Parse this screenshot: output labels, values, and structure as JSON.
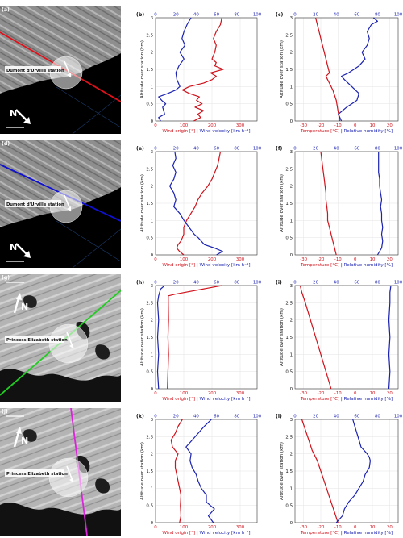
{
  "figure": {
    "ylabel": "Altitude over station (km)",
    "yticks": [
      "0",
      "0.5",
      "1",
      "1.5",
      "2",
      "2.5",
      "3"
    ],
    "wind_xlabel": {
      "red": "Wind origin [°]",
      "sep": " | ",
      "blue": "Wind velocity [km h⁻¹]"
    },
    "temp_xlabel": {
      "red": "Temperature [°C]",
      "sep": " | ",
      "blue": "Relative humidity [%]"
    },
    "wind_bottom_ticks": [
      "0",
      "100",
      "200",
      "300"
    ],
    "wind_top_ticks": [
      "0",
      "20",
      "40",
      "60",
      "80",
      "100"
    ],
    "temp_bottom_ticks": [
      "-30",
      "-20",
      "-10",
      "0",
      "10",
      "20"
    ],
    "temp_top_ticks": [
      "0",
      "20",
      "40",
      "60",
      "80",
      "100"
    ],
    "colors": {
      "red": "#d0121b",
      "blue": "#1b22b0",
      "green": "#22cc22",
      "magenta": "#dd22dd"
    }
  },
  "rows": [
    {
      "map": {
        "letter": "(a)",
        "station": "Dumont d'Urville station",
        "north": "N",
        "line_color": "#e0101a",
        "terrain": "dark"
      },
      "wind": {
        "letter": "(b)"
      },
      "temp": {
        "letter": "(c)"
      }
    },
    {
      "map": {
        "letter": "(d)",
        "station": "Dumont d'Urville station",
        "north": "N",
        "line_color": "#1010d0",
        "terrain": "dark"
      },
      "wind": {
        "letter": "(e)"
      },
      "temp": {
        "letter": "(f)"
      }
    },
    {
      "map": {
        "letter": "(g)",
        "station": "Princess Elizabeth station",
        "north": "N",
        "line_color": "#22cc22",
        "terrain": "light"
      },
      "wind": {
        "letter": "(h)"
      },
      "temp": {
        "letter": "(i)"
      }
    },
    {
      "map": {
        "letter": "(j)",
        "station": "Princess Elizabeth station",
        "north": "N",
        "line_color": "#dd22dd",
        "terrain": "light"
      },
      "wind": {
        "letter": "(k)"
      },
      "temp": {
        "letter": "(l)"
      }
    }
  ],
  "chart_data": [
    {
      "type": "line",
      "panel": "(b)",
      "xlim_bottom": [
        0,
        360
      ],
      "xlim_top": [
        0,
        100
      ],
      "ylim": [
        0,
        3
      ],
      "series": [
        {
          "color": "red",
          "axis": "bottom",
          "y": [
            0,
            0.1,
            0.2,
            0.3,
            0.4,
            0.5,
            0.6,
            0.7,
            0.8,
            0.9,
            1.0,
            1.1,
            1.2,
            1.3,
            1.4,
            1.5,
            1.6,
            1.7,
            1.8,
            1.9,
            2.0,
            2.2,
            2.4,
            2.6,
            2.8,
            3.0
          ],
          "x": [
            135,
            160,
            150,
            170,
            140,
            165,
            145,
            155,
            120,
            95,
            120,
            170,
            200,
            215,
            195,
            240,
            210,
            215,
            200,
            205,
            210,
            215,
            205,
            215,
            230,
            235
          ]
        },
        {
          "color": "blue",
          "axis": "top",
          "y": [
            0,
            0.1,
            0.2,
            0.3,
            0.4,
            0.5,
            0.6,
            0.7,
            0.8,
            0.9,
            1.0,
            1.2,
            1.4,
            1.6,
            1.8,
            2.0,
            2.2,
            2.4,
            2.6,
            2.8,
            3.0
          ],
          "x": [
            5,
            3,
            9,
            8,
            7,
            10,
            6,
            3,
            12,
            20,
            24,
            21,
            20,
            23,
            28,
            24,
            29,
            26,
            28,
            31,
            35
          ]
        }
      ]
    },
    {
      "type": "line",
      "panel": "(c)",
      "xlim_bottom": [
        -35,
        25
      ],
      "xlim_top": [
        0,
        100
      ],
      "ylim": [
        0,
        3
      ],
      "series": [
        {
          "color": "red",
          "axis": "bottom",
          "y": [
            0,
            0.3,
            0.6,
            0.9,
            1.1,
            1.2,
            1.3,
            1.4,
            1.6,
            1.8,
            2.0,
            2.2,
            2.4,
            2.6,
            2.8,
            3.0
          ],
          "x": [
            -9,
            -10,
            -11,
            -13,
            -15,
            -16,
            -17,
            -15,
            -16,
            -17,
            -18,
            -19,
            -20,
            -21,
            -22,
            -23
          ]
        },
        {
          "color": "blue",
          "axis": "top",
          "y": [
            0,
            0.2,
            0.4,
            0.5,
            0.6,
            0.8,
            1.0,
            1.2,
            1.3,
            1.4,
            1.6,
            1.8,
            2.0,
            2.2,
            2.4,
            2.6,
            2.8,
            2.9,
            3.0
          ],
          "x": [
            45,
            42,
            50,
            55,
            60,
            62,
            55,
            48,
            45,
            52,
            62,
            68,
            65,
            70,
            72,
            70,
            74,
            80,
            76
          ]
        }
      ]
    },
    {
      "type": "line",
      "panel": "(e)",
      "xlim_bottom": [
        0,
        360
      ],
      "xlim_top": [
        0,
        100
      ],
      "ylim": [
        0,
        3
      ],
      "series": [
        {
          "color": "red",
          "axis": "bottom",
          "y": [
            0,
            0.1,
            0.2,
            0.3,
            0.4,
            0.5,
            0.6,
            0.8,
            1.0,
            1.2,
            1.4,
            1.6,
            1.8,
            2.0,
            2.2,
            2.4,
            2.6,
            2.8,
            3.0
          ],
          "x": [
            100,
            85,
            75,
            80,
            90,
            95,
            100,
            100,
            110,
            125,
            140,
            150,
            165,
            185,
            200,
            210,
            220,
            225,
            230
          ]
        },
        {
          "color": "blue",
          "axis": "top",
          "y": [
            0,
            0.1,
            0.2,
            0.3,
            0.4,
            0.5,
            0.6,
            0.8,
            1.0,
            1.2,
            1.4,
            1.6,
            1.8,
            2.0,
            2.2,
            2.4,
            2.6,
            2.8,
            3.0
          ],
          "x": [
            60,
            66,
            58,
            48,
            45,
            42,
            38,
            33,
            28,
            24,
            18,
            20,
            18,
            14,
            18,
            20,
            17,
            20,
            19
          ]
        }
      ]
    },
    {
      "type": "line",
      "panel": "(f)",
      "xlim_bottom": [
        -35,
        25
      ],
      "xlim_top": [
        0,
        100
      ],
      "ylim": [
        0,
        3
      ],
      "series": [
        {
          "color": "red",
          "axis": "bottom",
          "y": [
            0,
            0.2,
            0.4,
            0.6,
            0.8,
            1.0,
            1.2,
            1.4,
            1.6,
            1.8,
            2.0,
            2.2,
            2.4,
            2.6,
            2.8,
            3.0
          ],
          "x": [
            -11,
            -12,
            -13,
            -14,
            -15,
            -16,
            -16,
            -16.5,
            -17,
            -17,
            -17.5,
            -18,
            -18.5,
            -19,
            -19.5,
            -20
          ]
        },
        {
          "color": "blue",
          "axis": "top",
          "y": [
            0,
            0.2,
            0.4,
            0.6,
            0.8,
            1.0,
            1.2,
            1.4,
            1.6,
            1.8,
            2.0,
            2.2,
            2.4,
            2.6,
            2.8,
            3.0
          ],
          "x": [
            80,
            84,
            85,
            84,
            85,
            84,
            84,
            83,
            84,
            83,
            82,
            82,
            81,
            81,
            81,
            81
          ]
        }
      ]
    },
    {
      "type": "line",
      "panel": "(h)",
      "xlim_bottom": [
        0,
        360
      ],
      "xlim_top": [
        0,
        100
      ],
      "ylim": [
        0,
        3
      ],
      "series": [
        {
          "color": "red",
          "axis": "bottom",
          "y": [
            0,
            0.5,
            1.0,
            1.5,
            2.0,
            2.5,
            2.6,
            2.7,
            2.75,
            3.0
          ],
          "x": [
            42,
            44,
            46,
            44,
            46,
            45,
            45,
            45,
            70,
            235
          ]
        },
        {
          "color": "blue",
          "axis": "top",
          "y": [
            0,
            0.5,
            1.0,
            1.5,
            2.0,
            2.5,
            2.7,
            2.8,
            2.9,
            3.0
          ],
          "x": [
            3,
            2,
            3,
            2,
            3,
            2,
            3,
            4,
            5,
            9
          ]
        }
      ]
    },
    {
      "type": "line",
      "panel": "(i)",
      "xlim_bottom": [
        -35,
        25
      ],
      "xlim_top": [
        0,
        100
      ],
      "ylim": [
        0,
        3
      ],
      "series": [
        {
          "color": "red",
          "axis": "bottom",
          "y": [
            0,
            0.5,
            1.0,
            1.5,
            2.0,
            2.5,
            2.8,
            3.0
          ],
          "x": [
            -14,
            -17,
            -20,
            -23,
            -26,
            -29,
            -31,
            -32
          ]
        },
        {
          "color": "blue",
          "axis": "top",
          "y": [
            0,
            0.5,
            1.0,
            1.5,
            2.0,
            2.5,
            2.8,
            3.0
          ],
          "x": [
            91,
            92,
            91,
            92,
            91,
            92,
            92,
            93
          ]
        }
      ]
    },
    {
      "type": "line",
      "panel": "(k)",
      "xlim_bottom": [
        0,
        360
      ],
      "xlim_top": [
        0,
        100
      ],
      "ylim": [
        0,
        3
      ],
      "series": [
        {
          "color": "red",
          "axis": "bottom",
          "y": [
            0,
            0.2,
            0.5,
            0.8,
            1.0,
            1.2,
            1.4,
            1.6,
            1.8,
            2.0,
            2.2,
            2.4,
            2.6,
            2.8,
            3.0
          ],
          "x": [
            85,
            90,
            88,
            90,
            85,
            80,
            75,
            70,
            70,
            80,
            60,
            55,
            70,
            80,
            95
          ]
        },
        {
          "color": "blue",
          "axis": "top",
          "y": [
            0,
            0.2,
            0.4,
            0.6,
            0.8,
            1.0,
            1.2,
            1.4,
            1.6,
            1.8,
            2.0,
            2.2,
            2.4,
            2.6,
            2.8,
            3.0
          ],
          "x": [
            57,
            52,
            58,
            50,
            50,
            45,
            42,
            40,
            36,
            34,
            35,
            30,
            36,
            42,
            48,
            55
          ]
        }
      ]
    },
    {
      "type": "line",
      "panel": "(l)",
      "xlim_bottom": [
        -35,
        25
      ],
      "xlim_top": [
        0,
        100
      ],
      "ylim": [
        0,
        3
      ],
      "series": [
        {
          "color": "red",
          "axis": "bottom",
          "y": [
            0,
            0.3,
            0.6,
            0.9,
            1.2,
            1.5,
            1.8,
            2.1,
            2.4,
            2.7,
            3.0
          ],
          "x": [
            -10,
            -12,
            -14,
            -16,
            -18,
            -20,
            -22,
            -25,
            -27,
            -29,
            -31
          ]
        },
        {
          "color": "blue",
          "axis": "top",
          "y": [
            0,
            0.2,
            0.4,
            0.6,
            0.8,
            1.0,
            1.2,
            1.4,
            1.6,
            1.8,
            1.9,
            2.0,
            2.2,
            2.4,
            2.6,
            2.8,
            3.0
          ],
          "x": [
            40,
            46,
            48,
            52,
            58,
            62,
            66,
            68,
            72,
            73,
            72,
            70,
            64,
            62,
            60,
            58,
            56
          ]
        }
      ]
    }
  ]
}
